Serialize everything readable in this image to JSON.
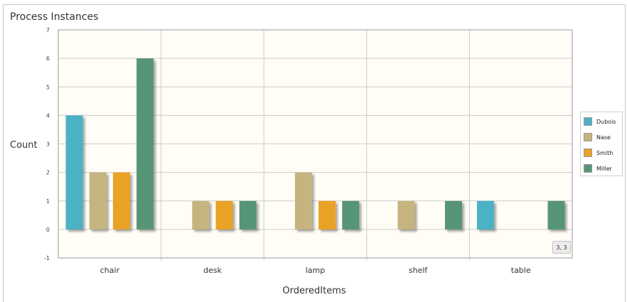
{
  "panel": {
    "title": "Process Instances"
  },
  "chart_data": {
    "type": "bar",
    "categories": [
      "chair",
      "desk",
      "lamp",
      "shelf",
      "table"
    ],
    "series": [
      {
        "name": "Dubois",
        "color": "#4bb2c5",
        "values": [
          4,
          0,
          0,
          0,
          1
        ]
      },
      {
        "name": "Nase",
        "color": "#c5b47f",
        "values": [
          2,
          1,
          2,
          1,
          0
        ]
      },
      {
        "name": "Smith",
        "color": "#eaa228",
        "values": [
          2,
          1,
          1,
          0,
          0
        ]
      },
      {
        "name": "Miller",
        "color": "#579575",
        "values": [
          6,
          1,
          1,
          1,
          1
        ]
      }
    ],
    "xlabel": "OrderedItems",
    "ylabel": "Count",
    "ylim": [
      -1,
      7
    ],
    "yticks": [
      -1,
      0,
      1,
      2,
      3,
      4,
      5,
      6,
      7
    ],
    "grid": true,
    "legend_position": "right",
    "background": "#fffdf6",
    "tooltip": "3, 3"
  }
}
